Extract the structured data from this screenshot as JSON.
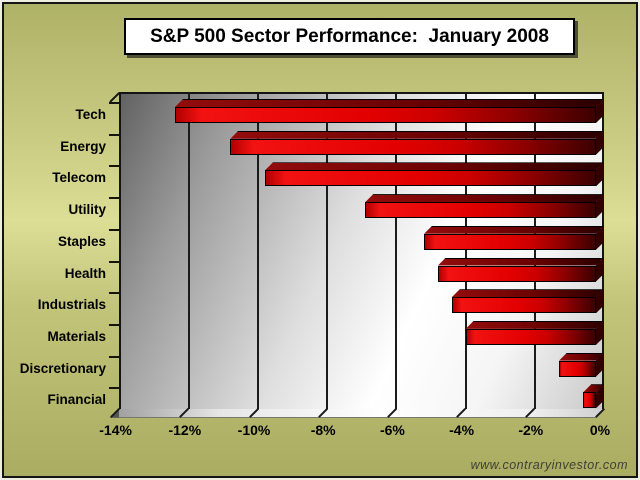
{
  "title": "S&P 500 Sector Performance:  January 2008",
  "watermark": "www.contraryinvestor.com",
  "chart_data": {
    "type": "bar",
    "orientation": "horizontal",
    "title": "S&P 500 Sector Performance: January 2008",
    "categories": [
      "Tech",
      "Energy",
      "Telecom",
      "Utility",
      "Staples",
      "Health",
      "Industrials",
      "Materials",
      "Discretionary",
      "Financial"
    ],
    "values": [
      -12.4,
      -10.8,
      -9.8,
      -6.9,
      -5.2,
      -4.8,
      -4.4,
      -4.0,
      -1.3,
      -0.6
    ],
    "value_suffix": "%",
    "xlabel": "",
    "ylabel": "",
    "xlim": [
      -14,
      0
    ],
    "x_ticks": [
      -14,
      -12,
      -10,
      -8,
      -6,
      -4,
      -2,
      0
    ],
    "x_tick_labels": [
      "-14%",
      "-12%",
      "-10%",
      "-8%",
      "-6%",
      "-4%",
      "-2%",
      "0%"
    ],
    "gridline_values": [
      -12,
      -10,
      -8,
      -6,
      -4,
      -2
    ],
    "grid": true,
    "legend": false,
    "style": "3d",
    "colors": {
      "bar_bright": "#f21212",
      "bar_mid": "#cc0000",
      "bar_dark": "#3c0000",
      "bar_top_left": "#930c0c",
      "bar_top_right": "#2a0000",
      "bar_cap": "#300000",
      "outline": "#000000",
      "wall_dark": "#626262",
      "wall_light": "#ffffff",
      "background": "#c2c47a",
      "title_background": "#ffffff",
      "text": "#000000"
    }
  }
}
